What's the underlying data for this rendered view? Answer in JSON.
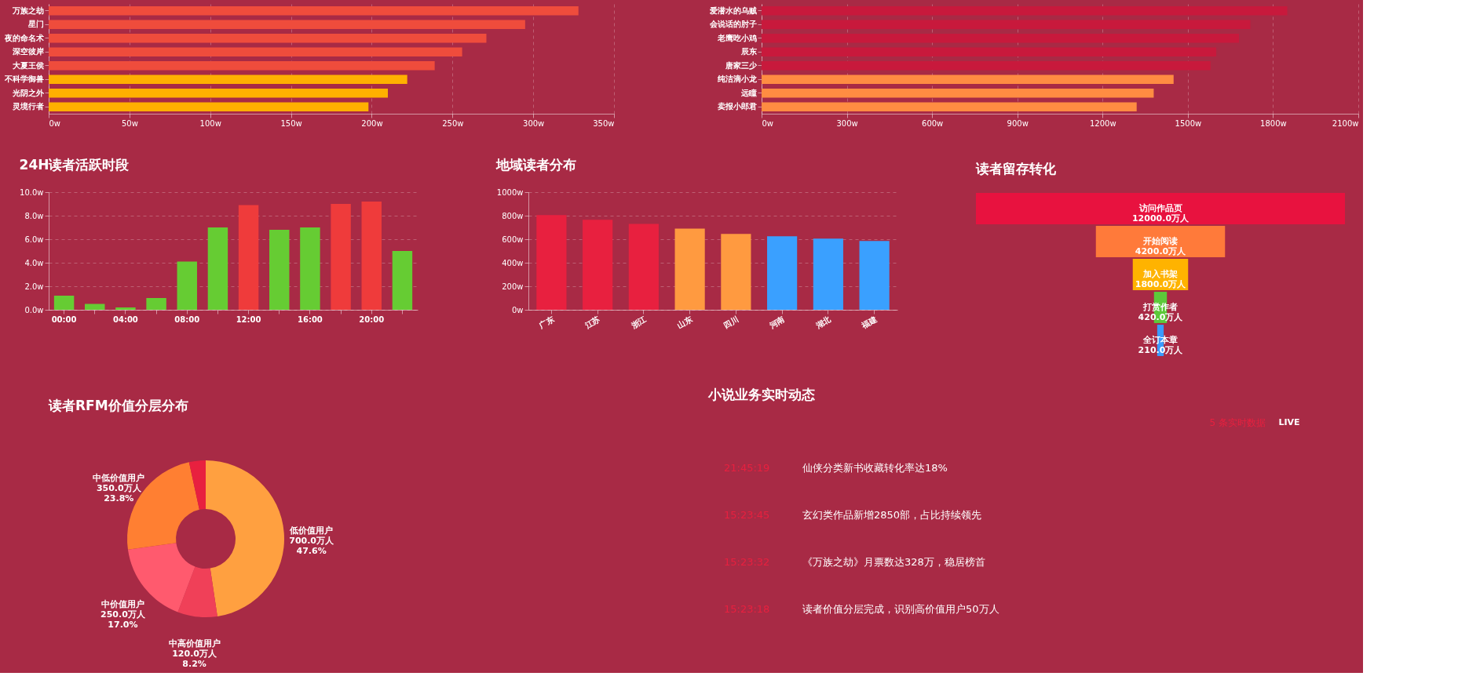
{
  "chart_data": [
    {
      "type": "bar",
      "orientation": "horizontal",
      "grid": "x",
      "categories": [
        "万族之劫",
        "星门",
        "夜的命名术",
        "深空彼岸",
        "大夏王侯",
        "不科学御兽",
        "光阴之外",
        "灵境行者"
      ],
      "values": [
        328,
        295,
        271,
        256,
        239,
        222,
        210,
        198
      ],
      "colors": [
        "#ef4c3c",
        "#ef4c3c",
        "#ef4c3c",
        "#ef4c3c",
        "#ef4c3c",
        "#ffb000",
        "#ffb000",
        "#ffb000"
      ],
      "xlim": [
        0,
        350
      ],
      "xticks": [
        {
          "value": 0,
          "label": "0w"
        },
        {
          "value": 50,
          "label": "50w"
        },
        {
          "value": 100,
          "label": "100w"
        },
        {
          "value": 150,
          "label": "150w"
        },
        {
          "value": 200,
          "label": "200w"
        },
        {
          "value": 250,
          "label": "250w"
        },
        {
          "value": 300,
          "label": "300w"
        },
        {
          "value": 350,
          "label": "350w"
        }
      ]
    },
    {
      "type": "bar",
      "orientation": "horizontal",
      "grid": "x",
      "categories": [
        "爱潜水的乌贼",
        "会说话的肘子",
        "老鹰吃小鸡",
        "辰东",
        "唐家三少",
        "纯洁滴小龙",
        "远瞳",
        "卖报小郎君"
      ],
      "values": [
        1850,
        1720,
        1680,
        1600,
        1580,
        1450,
        1380,
        1320
      ],
      "colors": [
        "#c8193c",
        "#c8193c",
        "#c8193c",
        "#c8193c",
        "#c8193c",
        "#ff8c42",
        "#ff8c42",
        "#ff8c42"
      ],
      "xlim": [
        0,
        2100
      ],
      "xticks": [
        {
          "value": 0,
          "label": "0w"
        },
        {
          "value": 300,
          "label": "300w"
        },
        {
          "value": 600,
          "label": "600w"
        },
        {
          "value": 900,
          "label": "900w"
        },
        {
          "value": 1200,
          "label": "1200w"
        },
        {
          "value": 1500,
          "label": "1500w"
        },
        {
          "value": 1800,
          "label": "1800w"
        },
        {
          "value": 2100,
          "label": "2100w"
        }
      ]
    },
    {
      "type": "bar",
      "title": "24H读者活跃时段",
      "grid": "y",
      "categories": [
        "00:00",
        null,
        "04:00",
        null,
        "08:00",
        null,
        "12:00",
        null,
        "16:00",
        null,
        "20:00",
        null
      ],
      "values": [
        1.2,
        0.5,
        0.2,
        1.0,
        4.1,
        7.0,
        8.9,
        6.8,
        7.0,
        9.0,
        9.2,
        5.0
      ],
      "colors": [
        "#66cc33",
        "#66cc33",
        "#66cc33",
        "#66cc33",
        "#66cc33",
        "#66cc33",
        "#ef3b3b",
        "#66cc33",
        "#66cc33",
        "#ef3b3b",
        "#ef3b3b",
        "#66cc33"
      ],
      "ylim": [
        0,
        10
      ],
      "yticks": [
        {
          "value": 0,
          "label": "0.0w"
        },
        {
          "value": 2,
          "label": "2.0w"
        },
        {
          "value": 4,
          "label": "4.0w"
        },
        {
          "value": 6,
          "label": "6.0w"
        },
        {
          "value": 8,
          "label": "8.0w"
        },
        {
          "value": 10,
          "label": "10.0w"
        }
      ]
    },
    {
      "type": "bar",
      "title": "地域读者分布",
      "grid": "y",
      "categories": [
        "广东",
        "江苏",
        "浙江",
        "山东",
        "四川",
        "河南",
        "湖北",
        "福建"
      ],
      "values": [
        805,
        765,
        730,
        690,
        645,
        625,
        605,
        585
      ],
      "colors": [
        "#e8203f",
        "#e8203f",
        "#e8203f",
        "#ff9a40",
        "#ff9a40",
        "#3aa0ff",
        "#3aa0ff",
        "#3aa0ff"
      ],
      "ylim": [
        0,
        1000
      ],
      "yticks": [
        {
          "value": 0,
          "label": "0w"
        },
        {
          "value": 200,
          "label": "200w"
        },
        {
          "value": 400,
          "label": "400w"
        },
        {
          "value": 600,
          "label": "600w"
        },
        {
          "value": 800,
          "label": "800w"
        },
        {
          "value": 1000,
          "label": "1000w"
        }
      ]
    },
    {
      "type": "other",
      "title": "读者留存转化",
      "categories": [
        "访问作品页",
        "开始阅读",
        "加入书架",
        "打赏作者",
        "全订本章"
      ],
      "values": [
        12000,
        4200,
        1800,
        420,
        210
      ],
      "value_labels": [
        "12000.0万人",
        "4200.0万人",
        "1800.0万人",
        "420.0万人",
        "210.0万人"
      ],
      "colors": [
        "#e8123f",
        "#ff7a3a",
        "#ffb300",
        "#5cc93a",
        "#3a9bff"
      ]
    },
    {
      "type": "donut",
      "title": "读者RFM价值分层分布",
      "categories": [
        "低价值用户",
        "中高价值用户",
        "中价值用户",
        "中低价值用户",
        null
      ],
      "values": [
        700,
        120,
        250,
        350,
        50
      ],
      "value_labels": [
        "700.0万人\n47.6%",
        "120.0万人\n8.2%",
        "250.0万人\n17.0%",
        "350.0万人\n23.8%",
        null
      ],
      "colors": [
        "#ffa040",
        "#f04058",
        "#ff5a6e",
        "#ff7f32",
        "#e8203f"
      ]
    },
    {
      "type": "other",
      "title": "小说业务实时动态",
      "annotations": [
        "5 条实时数据",
        "LIVE",
        "21:45:19",
        "仙侠分类新书收藏转化率达18%",
        "15:23:45",
        "玄幻类作品新增2850部，占比持续领先",
        "15:23:32",
        "《万族之劫》月票数达328万，稳居榜首",
        "15:23:18",
        "读者价值分层完成，识别高价值用户50万人"
      ]
    }
  ]
}
